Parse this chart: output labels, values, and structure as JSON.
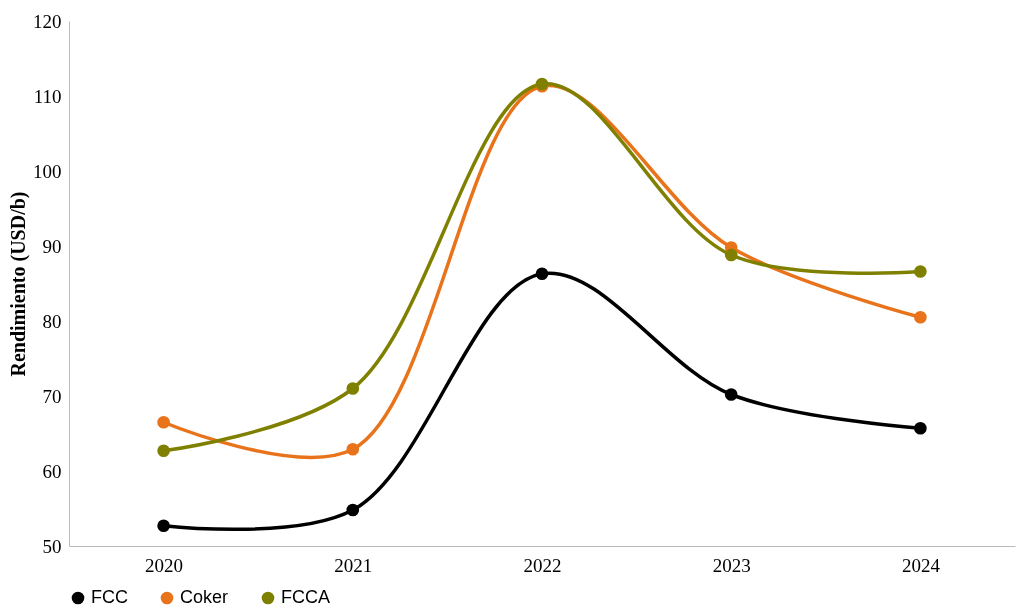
{
  "chart_data": {
    "type": "line",
    "ylabel": "Rendimiento (USD/b)",
    "categories": [
      "2020",
      "2021",
      "2022",
      "2023",
      "2024"
    ],
    "series": [
      {
        "name": "FCC",
        "color": "#000000",
        "values": [
          52.7,
          54.8,
          86.3,
          70.2,
          65.7
        ]
      },
      {
        "name": "Coker",
        "color": "#e8731a",
        "values": [
          66.5,
          62.9,
          111.3,
          89.8,
          80.5
        ]
      },
      {
        "name": "FCCA",
        "color": "#7f8000",
        "values": [
          62.7,
          71.0,
          111.6,
          88.8,
          86.6
        ]
      }
    ],
    "ylim": [
      50,
      120
    ],
    "yticks": [
      50,
      60,
      70,
      80,
      90,
      100,
      110,
      120
    ],
    "grid": false,
    "legend": "bottom",
    "marker": "circle",
    "line_style": "solid"
  }
}
